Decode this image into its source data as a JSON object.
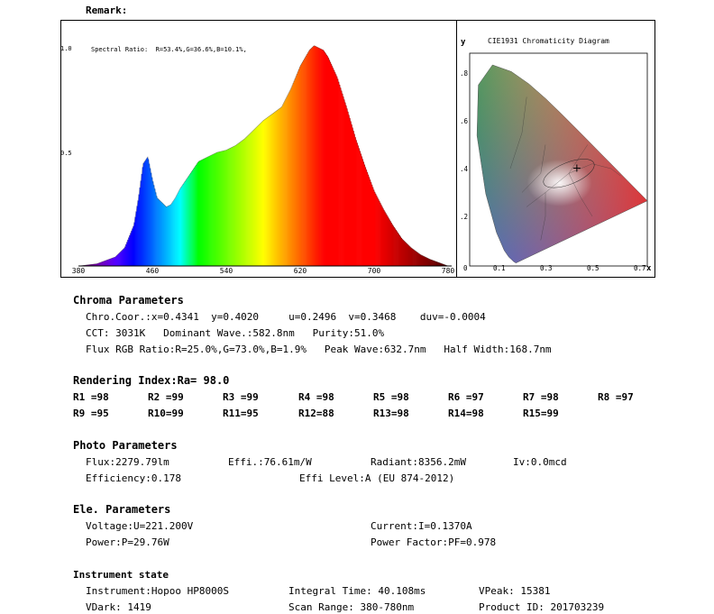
{
  "remark_label": "Remark:",
  "spectrum": {
    "ratio_text": "Spectral Ratio:  R=53.4%,G=36.6%,B=10.1%,",
    "y_ticks": [
      "1.0",
      "0.5"
    ],
    "x_ticks": [
      "380",
      "460",
      "540",
      "620",
      "700",
      "780"
    ]
  },
  "cie": {
    "title": "CIE1931 Chromaticity Diagram",
    "y_label": "y",
    "x_label": "x",
    "y_ticks": [
      ".8",
      ".6",
      ".4",
      ".2"
    ],
    "x_ticks": [
      "0",
      "0.1",
      "0.3",
      "0.5",
      "0.7"
    ]
  },
  "chroma": {
    "heading": "Chroma Parameters",
    "line1": "Chro.Coor.:x=0.4341  y=0.4020     u=0.2496  v=0.3468    duv=-0.0004",
    "line2": "CCT: 3031K   Dominant Wave.:582.8nm   Purity:51.0%",
    "line3": "Flux RGB Ratio:R=25.0%,G=73.0%,B=1.9%   Peak Wave:632.7nm   Half Width:168.7nm"
  },
  "rendering": {
    "heading": "Rendering Index:Ra= 98.0",
    "items": [
      "R1 =98",
      "R2 =99",
      "R3 =99",
      "R4 =98",
      "R5 =98",
      "R6 =97",
      "R7 =98",
      "R8 =97",
      "R9 =95",
      "R10=99",
      "R11=95",
      "R12=88",
      "R13=98",
      "R14=98",
      "R15=99"
    ]
  },
  "photo": {
    "heading": "Photo Parameters",
    "flux": "Flux:2279.79lm",
    "effi": "Effi.:76.61m/W",
    "radiant": "Radiant:8356.2mW",
    "iv": "Iv:0.0mcd",
    "efficiency": "Efficiency:0.178",
    "effi_level": "Effi Level:A (EU 874-2012)"
  },
  "ele": {
    "heading": "Ele. Parameters",
    "voltage": "Voltage:U=221.200V",
    "current": "Current:I=0.1370A",
    "power": "Power:P=29.76W",
    "power_factor": "Power Factor:PF=0.978"
  },
  "instrument": {
    "heading": "Instrument state",
    "instrument": "Instrument:Hopoo HP8000S",
    "integral": "Integral Time: 40.108ms",
    "vpeak": "VPeak: 15381",
    "vdark": "VDark: 1419",
    "scan_range": "Scan Range: 380-780nm",
    "product_id": "Product ID: 201703239"
  },
  "chart_data": {
    "type": "area",
    "title": "Spectral Ratio:  R=53.4%,G=36.6%,B=10.1%,",
    "xlabel": "",
    "ylabel": "",
    "xlim": [
      380,
      780
    ],
    "ylim": [
      0,
      1.0
    ],
    "x": [
      380,
      400,
      420,
      430,
      440,
      445,
      450,
      455,
      460,
      465,
      470,
      475,
      480,
      485,
      490,
      500,
      510,
      520,
      530,
      540,
      550,
      560,
      570,
      580,
      590,
      600,
      610,
      620,
      630,
      635,
      640,
      645,
      650,
      660,
      670,
      680,
      690,
      700,
      710,
      720,
      730,
      740,
      750,
      760,
      770,
      780
    ],
    "values": [
      0.0,
      0.01,
      0.04,
      0.08,
      0.18,
      0.3,
      0.45,
      0.48,
      0.38,
      0.3,
      0.28,
      0.26,
      0.27,
      0.3,
      0.34,
      0.4,
      0.46,
      0.48,
      0.5,
      0.51,
      0.53,
      0.56,
      0.6,
      0.64,
      0.67,
      0.7,
      0.78,
      0.88,
      0.95,
      0.97,
      0.96,
      0.95,
      0.92,
      0.83,
      0.7,
      0.56,
      0.44,
      0.33,
      0.25,
      0.18,
      0.12,
      0.08,
      0.05,
      0.03,
      0.015,
      0.0
    ]
  }
}
